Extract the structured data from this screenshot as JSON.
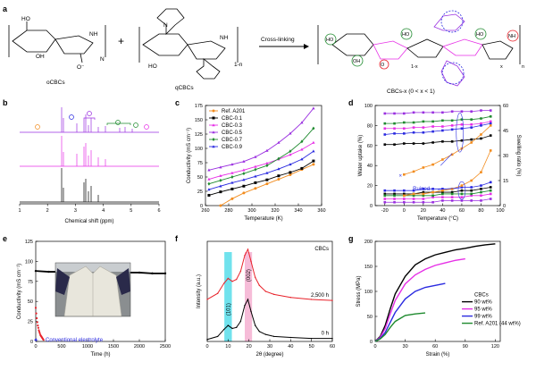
{
  "colors": {
    "black": "#000000",
    "orange": "#f28c1e",
    "magenta": "#e62fe6",
    "purple": "#9a2fe0",
    "green": "#1e8a2e",
    "blue": "#2a2ae0",
    "red": "#e8222a",
    "cyan": "#33d6e6",
    "pink": "#f2a0c8"
  },
  "panels": {
    "a": {
      "letter": "a",
      "labels": {
        "ocbc": "oCBCs",
        "qcbc": "qCBCs",
        "product": "CBCs-x (0 < x < 1)",
        "arrow": "Cross-linking",
        "plus": "+"
      },
      "groups": {
        "ho": "HO",
        "oh": "OH",
        "nh": "NH",
        "o": "O",
        "n": "N",
        "n1": "n",
        "n1x": "1-x",
        "nx": "x",
        "n1n": "1-n",
        "ominus": "O⁻"
      }
    },
    "b": {
      "letter": "b",
      "xlabel": "Chemical shift (ppm)",
      "xticks": [
        "1",
        "2",
        "3",
        "4",
        "5",
        "6"
      ]
    },
    "e": {
      "letter": "e",
      "xlabel": "Time (h)",
      "ylabel": "Conductivity (mS cm⁻¹)",
      "annotation": "Conventional electrolyte"
    },
    "f": {
      "letter": "f",
      "xlabel": "2θ (degree)",
      "ylabel": "Intensity (a.u.)"
    },
    "g": {
      "letter": "g",
      "xlabel": "Strain (%)",
      "ylabel": "Stress (MPa)"
    },
    "c": {
      "letter": "c"
    },
    "d": {
      "letter": "d"
    }
  },
  "chart_data": [
    {
      "id": "c",
      "type": "line",
      "xlabel": "Temperature (K)",
      "ylabel": "Conductivity (mS cm⁻¹)",
      "xlim": [
        260,
        360
      ],
      "ylim": [
        0,
        175
      ],
      "xticks": [
        260,
        280,
        300,
        320,
        340,
        360
      ],
      "yticks": [
        0,
        25,
        50,
        75,
        100,
        125,
        150,
        175
      ],
      "legend": "top-left",
      "series": [
        {
          "name": "Ref. A201",
          "color": "#f28c1e",
          "marker": "circle",
          "x": [
            273,
            283,
            293,
            303,
            313,
            323,
            333,
            343,
            353
          ],
          "y": [
            0,
            12,
            22,
            30,
            38,
            46,
            54,
            63,
            72
          ]
        },
        {
          "name": "CBC-0.1",
          "color": "#000000",
          "marker": "square",
          "x": [
            263,
            273,
            283,
            293,
            303,
            313,
            323,
            333,
            343,
            353
          ],
          "y": [
            18,
            24,
            29,
            34,
            40,
            45,
            52,
            58,
            65,
            78
          ]
        },
        {
          "name": "CBC-0.3",
          "color": "#e62fe6",
          "marker": "triangle",
          "x": [
            263,
            273,
            283,
            293,
            303,
            313,
            323,
            333,
            343,
            353
          ],
          "y": [
            46,
            52,
            57,
            62,
            68,
            74,
            81,
            89,
            98,
            110
          ]
        },
        {
          "name": "CBC-0.5",
          "color": "#9a2fe0",
          "marker": "triangle",
          "x": [
            263,
            273,
            283,
            293,
            303,
            313,
            323,
            333,
            343,
            353
          ],
          "y": [
            62,
            67,
            72,
            77,
            85,
            96,
            110,
            126,
            145,
            170
          ]
        },
        {
          "name": "CBC-0.7",
          "color": "#1e8a2e",
          "marker": "diamond",
          "x": [
            263,
            273,
            283,
            293,
            303,
            313,
            323,
            333,
            343,
            353
          ],
          "y": [
            38,
            44,
            50,
            56,
            63,
            70,
            82,
            95,
            112,
            135
          ]
        },
        {
          "name": "CBC-0.9",
          "color": "#2a2ae0",
          "marker": "triangle",
          "x": [
            263,
            273,
            283,
            293,
            303,
            313,
            323,
            333,
            343,
            353
          ],
          "y": [
            28,
            34,
            40,
            45,
            51,
            57,
            64,
            72,
            81,
            95
          ]
        }
      ]
    },
    {
      "id": "d",
      "type": "line",
      "xlabel": "Temperature (°C)",
      "ylabel": "Water uptake (%)",
      "y2label": "Swelling ratio (%)",
      "xlim": [
        -30,
        100
      ],
      "ylim": [
        0,
        100
      ],
      "y2lim": [
        0,
        60
      ],
      "xticks": [
        -20,
        0,
        20,
        40,
        60,
        80,
        100
      ],
      "yticks": [
        0,
        20,
        40,
        60,
        80,
        100
      ],
      "y2ticks": [
        0,
        15,
        30,
        45,
        60
      ],
      "annotation": "Ruined",
      "x": [
        -20,
        -10,
        0,
        10,
        20,
        30,
        40,
        50,
        60,
        70,
        80,
        90
      ],
      "series": [
        {
          "color": "#000000",
          "axis": "left",
          "y": [
            61,
            61,
            62,
            62,
            62,
            63,
            64,
            64,
            65,
            66,
            67,
            70
          ]
        },
        {
          "color": "#e62fe6",
          "axis": "left",
          "y": [
            77,
            77,
            77,
            78,
            78,
            79,
            79,
            80,
            81,
            81,
            82,
            84
          ]
        },
        {
          "color": "#9a2fe0",
          "axis": "left",
          "y": [
            92,
            92,
            92,
            93,
            93,
            93,
            93,
            94,
            94,
            94,
            95,
            95
          ]
        },
        {
          "color": "#1e8a2e",
          "axis": "left",
          "y": [
            82,
            82,
            83,
            83,
            84,
            84,
            85,
            85,
            86,
            86,
            87,
            89
          ]
        },
        {
          "color": "#2a2ae0",
          "axis": "left",
          "y": [
            71,
            72,
            72,
            73,
            73,
            74,
            75,
            76,
            77,
            78,
            80,
            82
          ]
        },
        {
          "color": "#f28c1e",
          "axis": "left",
          "x": [
            0,
            10,
            20,
            30,
            40,
            50,
            60,
            70,
            80,
            90
          ],
          "y": [
            31,
            34,
            38,
            41,
            46,
            51,
            57,
            63,
            71,
            80
          ]
        },
        {
          "color": "#000000",
          "axis": "right",
          "y": [
            7,
            7,
            7,
            7,
            8,
            8,
            8,
            8,
            9,
            9,
            10,
            11
          ]
        },
        {
          "color": "#e62fe6",
          "axis": "right",
          "y": [
            4,
            4,
            4,
            4,
            4,
            5,
            5,
            5,
            5,
            6,
            6,
            7
          ]
        },
        {
          "color": "#9a2fe0",
          "axis": "right",
          "y": [
            2,
            2,
            2,
            2,
            2,
            2,
            3,
            3,
            3,
            3,
            3,
            4
          ]
        },
        {
          "color": "#1e8a2e",
          "axis": "right",
          "y": [
            6,
            6,
            6,
            6,
            6,
            6,
            7,
            7,
            7,
            7,
            8,
            9
          ]
        },
        {
          "color": "#2a2ae0",
          "axis": "right",
          "y": [
            9,
            9,
            9,
            9,
            10,
            10,
            10,
            10,
            11,
            11,
            12,
            14
          ]
        },
        {
          "color": "#f28c1e",
          "axis": "right",
          "x": [
            0,
            10,
            20,
            30,
            40,
            50,
            60,
            70,
            80,
            90
          ],
          "y": [
            6,
            7,
            7,
            8,
            9,
            10,
            12,
            15,
            20,
            33
          ]
        }
      ]
    },
    {
      "id": "e",
      "type": "scatter",
      "xlabel": "Time (h)",
      "ylabel": "Conductivity (mS cm⁻¹)",
      "xlim": [
        0,
        2500
      ],
      "ylim": [
        0,
        125
      ],
      "xticks": [
        0,
        500,
        1000,
        1500,
        2000,
        2500
      ],
      "yticks": [
        0,
        25,
        50,
        75,
        100,
        125
      ],
      "series": [
        {
          "color": "#000000",
          "x": [
            0,
            250,
            500,
            750,
            1000,
            1250,
            1500,
            1750,
            2000,
            2250,
            2500
          ],
          "y": [
            88,
            87,
            87,
            87,
            86,
            86,
            86,
            86,
            86,
            85,
            85
          ]
        },
        {
          "color": "#e8222a",
          "x": [
            0,
            10,
            20,
            30,
            40,
            50,
            60,
            70,
            80,
            90,
            100,
            110,
            120,
            130,
            140,
            150
          ],
          "y": [
            42,
            35,
            29,
            24,
            20,
            17,
            14,
            12,
            10,
            8,
            7,
            6,
            5,
            4,
            3,
            2
          ]
        }
      ]
    },
    {
      "id": "f",
      "type": "line",
      "title": "CBCs",
      "xlabel": "2θ (degree)",
      "ylabel": "Intensity (a.u.)",
      "xlim": [
        0,
        60
      ],
      "xticks": [
        0,
        10,
        20,
        30,
        40,
        50,
        60
      ],
      "annotations": [
        "(101)",
        "(002)"
      ],
      "series": [
        {
          "name": "2,500 h",
          "color": "#e8222a",
          "x": [
            0,
            5,
            8,
            10,
            12,
            14,
            16,
            18,
            19.5,
            21,
            23,
            25,
            28,
            32,
            40,
            50,
            60
          ],
          "y": [
            0.42,
            0.48,
            0.58,
            0.63,
            0.6,
            0.62,
            0.7,
            0.86,
            0.92,
            0.8,
            0.64,
            0.56,
            0.5,
            0.47,
            0.44,
            0.42,
            0.41
          ]
        },
        {
          "name": "0 h",
          "color": "#000000",
          "x": [
            0,
            5,
            8,
            10,
            12,
            14,
            16,
            18,
            19.5,
            21,
            23,
            25,
            28,
            32,
            40,
            50,
            60
          ],
          "y": [
            0.02,
            0.05,
            0.12,
            0.16,
            0.13,
            0.14,
            0.2,
            0.36,
            0.42,
            0.3,
            0.16,
            0.1,
            0.07,
            0.05,
            0.04,
            0.03,
            0.03
          ]
        }
      ]
    },
    {
      "id": "g",
      "type": "line",
      "xlabel": "Strain (%)",
      "ylabel": "Stress (MPa)",
      "xlim": [
        0,
        125
      ],
      "ylim": [
        0,
        200
      ],
      "xticks": [
        0,
        30,
        60,
        90,
        120
      ],
      "yticks": [
        0,
        50,
        100,
        150,
        200
      ],
      "legend_title": "CBCs",
      "legend": "right",
      "series": [
        {
          "name": "90 wt%",
          "color": "#000000",
          "x": [
            0,
            5,
            10,
            15,
            20,
            30,
            40,
            50,
            60,
            70,
            80,
            90,
            100,
            110,
            120
          ],
          "y": [
            0,
            10,
            32,
            65,
            95,
            130,
            153,
            165,
            173,
            178,
            183,
            186,
            190,
            193,
            195
          ]
        },
        {
          "name": "95 wt%",
          "color": "#e62fe6",
          "x": [
            0,
            5,
            10,
            15,
            20,
            30,
            40,
            50,
            60,
            70,
            80,
            90
          ],
          "y": [
            0,
            8,
            26,
            55,
            82,
            115,
            133,
            144,
            152,
            157,
            162,
            165
          ]
        },
        {
          "name": "99 wt%",
          "color": "#2a2ae0",
          "x": [
            0,
            5,
            10,
            15,
            20,
            30,
            40,
            50,
            60,
            70
          ],
          "y": [
            0,
            6,
            18,
            38,
            58,
            85,
            100,
            108,
            112,
            116
          ]
        },
        {
          "name": "Ref. A201 (44 wt%)",
          "color": "#1e8a2e",
          "x": [
            0,
            5,
            10,
            15,
            20,
            30,
            40,
            50
          ],
          "y": [
            0,
            5,
            14,
            28,
            40,
            52,
            55,
            57
          ]
        }
      ]
    }
  ]
}
